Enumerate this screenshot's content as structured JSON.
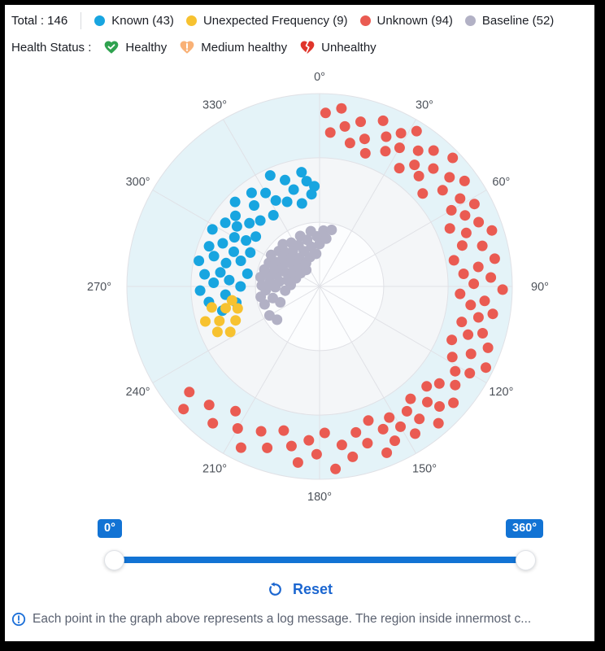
{
  "header": {
    "total_label": "Total : 146",
    "legend": [
      {
        "label": "Known (43)",
        "color": "#18a5e0"
      },
      {
        "label": "Unexpected Frequency (9)",
        "color": "#f7c230"
      },
      {
        "label": "Unknown (94)",
        "color": "#ea5b52"
      },
      {
        "label": "Baseline (52)",
        "color": "#b2b1c5"
      }
    ],
    "health_status_label": "Health Status :",
    "health_legend": [
      {
        "label": "Healthy",
        "icon": "heart-check-icon",
        "color": "#2fa24f"
      },
      {
        "label": "Medium healthy",
        "icon": "heart-exclamation-icon",
        "color": "#f9b176"
      },
      {
        "label": "Unhealthy",
        "icon": "heart-broken-icon",
        "color": "#e0352b"
      }
    ]
  },
  "chart_data": {
    "type": "scatter",
    "coordinate_system": "polar",
    "angle_unit": "degrees_clockwise_from_top",
    "angular_ticks": [
      "0°",
      "30°",
      "60°",
      "90°",
      "120°",
      "150°",
      "180°",
      "210°",
      "240°",
      "270°",
      "300°",
      "330°"
    ],
    "radial_range": [
      0,
      1
    ],
    "layout": {
      "grid_color": "#e0e1e6",
      "rings": [
        {
          "r_fraction": 0.333,
          "fill": "#fcfdfe"
        },
        {
          "r_fraction": 0.667,
          "fill": "#f4f6f8"
        },
        {
          "r_fraction": 1.0,
          "fill": "#e4f3f8"
        }
      ],
      "point_radius": 6.5
    },
    "series": [
      {
        "name": "Known",
        "color": "#18a5e0",
        "count": 43,
        "points": [
          [
            256,
            0.52
          ],
          [
            259,
            0.44
          ],
          [
            262,
            0.58
          ],
          [
            265,
            0.49
          ],
          [
            268,
            0.62
          ],
          [
            270,
            0.41
          ],
          [
            272,
            0.55
          ],
          [
            274,
            0.47
          ],
          [
            276,
            0.6
          ],
          [
            278,
            0.52
          ],
          [
            280,
            0.38
          ],
          [
            282,
            0.64
          ],
          [
            284,
            0.5
          ],
          [
            286,
            0.57
          ],
          [
            288,
            0.43
          ],
          [
            290,
            0.61
          ],
          [
            292,
            0.48
          ],
          [
            294,
            0.55
          ],
          [
            296,
            0.4
          ],
          [
            298,
            0.63
          ],
          [
            300,
            0.51
          ],
          [
            302,
            0.45
          ],
          [
            304,
            0.59
          ],
          [
            306,
            0.53
          ],
          [
            308,
            0.42
          ],
          [
            310,
            0.57
          ],
          [
            312,
            0.49
          ],
          [
            315,
            0.62
          ],
          [
            318,
            0.46
          ],
          [
            321,
            0.54
          ],
          [
            324,
            0.6
          ],
          [
            327,
            0.44
          ],
          [
            330,
            0.56
          ],
          [
            333,
            0.5
          ],
          [
            336,
            0.63
          ],
          [
            339,
            0.47
          ],
          [
            342,
            0.58
          ],
          [
            345,
            0.52
          ],
          [
            348,
            0.44
          ],
          [
            351,
            0.6
          ],
          [
            353,
            0.55
          ],
          [
            355,
            0.48
          ],
          [
            357,
            0.52
          ]
        ]
      },
      {
        "name": "Unexpected Frequency",
        "color": "#f7c230",
        "count": 9,
        "points": [
          [
            243,
            0.52
          ],
          [
            246,
            0.58
          ],
          [
            248,
            0.47
          ],
          [
            251,
            0.55
          ],
          [
            253,
            0.62
          ],
          [
            255,
            0.44
          ],
          [
            257,
            0.5
          ],
          [
            259,
            0.57
          ],
          [
            261,
            0.46
          ]
        ]
      },
      {
        "name": "Unknown",
        "color": "#ea5b52",
        "count": 94,
        "points": [
          [
            2,
            0.9
          ],
          [
            4,
            0.8
          ],
          [
            7,
            0.93
          ],
          [
            9,
            0.84
          ],
          [
            12,
            0.76
          ],
          [
            14,
            0.88
          ],
          [
            17,
            0.8
          ],
          [
            19,
            0.73
          ],
          [
            21,
            0.92
          ],
          [
            24,
            0.85
          ],
          [
            26,
            0.78
          ],
          [
            28,
            0.9
          ],
          [
            30,
            0.83
          ],
          [
            32,
            0.95
          ],
          [
            34,
            0.74
          ],
          [
            36,
            0.87
          ],
          [
            38,
            0.8
          ],
          [
            40,
            0.92
          ],
          [
            42,
            0.77
          ],
          [
            44,
            0.85
          ],
          [
            46,
            0.96
          ],
          [
            48,
            0.72
          ],
          [
            50,
            0.88
          ],
          [
            52,
            0.81
          ],
          [
            54,
            0.93
          ],
          [
            58,
            0.86
          ],
          [
            60,
            0.79
          ],
          [
            62,
            0.91
          ],
          [
            64,
            0.84
          ],
          [
            66,
            0.74
          ],
          [
            68,
            0.89
          ],
          [
            70,
            0.81
          ],
          [
            72,
            0.94
          ],
          [
            74,
            0.77
          ],
          [
            76,
            0.87
          ],
          [
            79,
            0.71
          ],
          [
            81,
            0.92
          ],
          [
            83,
            0.83
          ],
          [
            85,
            0.75
          ],
          [
            87,
            0.89
          ],
          [
            89,
            0.8
          ],
          [
            91,
            0.95
          ],
          [
            93,
            0.73
          ],
          [
            95,
            0.86
          ],
          [
            97,
            0.79
          ],
          [
            99,
            0.91
          ],
          [
            101,
            0.84
          ],
          [
            104,
            0.76
          ],
          [
            106,
            0.88
          ],
          [
            108,
            0.81
          ],
          [
            110,
            0.93
          ],
          [
            112,
            0.74
          ],
          [
            114,
            0.86
          ],
          [
            116,
            0.96
          ],
          [
            118,
            0.78
          ],
          [
            120,
            0.9
          ],
          [
            122,
            0.83
          ],
          [
            126,
            0.87
          ],
          [
            129,
            0.8
          ],
          [
            131,
            0.92
          ],
          [
            133,
            0.76
          ],
          [
            135,
            0.88
          ],
          [
            137,
            0.82
          ],
          [
            139,
            0.94
          ],
          [
            141,
            0.75
          ],
          [
            143,
            0.86
          ],
          [
            145,
            0.79
          ],
          [
            147,
            0.91
          ],
          [
            150,
            0.84
          ],
          [
            152,
            0.77
          ],
          [
            154,
            0.89
          ],
          [
            156,
            0.81
          ],
          [
            158,
            0.93
          ],
          [
            160,
            0.74
          ],
          [
            163,
            0.85
          ],
          [
            166,
            0.78
          ],
          [
            169,
            0.9
          ],
          [
            172,
            0.83
          ],
          [
            175,
            0.95
          ],
          [
            178,
            0.76
          ],
          [
            181,
            0.87
          ],
          [
            184,
            0.8
          ],
          [
            187,
            0.92
          ],
          [
            190,
            0.84
          ],
          [
            194,
            0.77
          ],
          [
            198,
            0.88
          ],
          [
            202,
            0.81
          ],
          [
            206,
            0.93
          ],
          [
            210,
            0.85
          ],
          [
            214,
            0.78
          ],
          [
            218,
            0.9
          ],
          [
            223,
            0.84
          ],
          [
            228,
            0.95
          ],
          [
            231,
            0.87
          ]
        ]
      },
      {
        "name": "Baseline",
        "color": "#b2b1c5",
        "count": 52,
        "points": [
          [
            232,
            0.28
          ],
          [
            240,
            0.3
          ],
          [
            248,
            0.22
          ],
          [
            252,
            0.3
          ],
          [
            256,
            0.25
          ],
          [
            260,
            0.31
          ],
          [
            263,
            0.18
          ],
          [
            266,
            0.28
          ],
          [
            269,
            0.23
          ],
          [
            271,
            0.3
          ],
          [
            273,
            0.15
          ],
          [
            275,
            0.26
          ],
          [
            277,
            0.21
          ],
          [
            279,
            0.31
          ],
          [
            281,
            0.17
          ],
          [
            283,
            0.27
          ],
          [
            285,
            0.23
          ],
          [
            287,
            0.3
          ],
          [
            289,
            0.13
          ],
          [
            291,
            0.25
          ],
          [
            293,
            0.2
          ],
          [
            295,
            0.29
          ],
          [
            297,
            0.16
          ],
          [
            299,
            0.26
          ],
          [
            301,
            0.22
          ],
          [
            303,
            0.3
          ],
          [
            305,
            0.12
          ],
          [
            307,
            0.24
          ],
          [
            309,
            0.19
          ],
          [
            311,
            0.28
          ],
          [
            313,
            0.15
          ],
          [
            315,
            0.25
          ],
          [
            317,
            0.21
          ],
          [
            319,
            0.29
          ],
          [
            321,
            0.11
          ],
          [
            323,
            0.23
          ],
          [
            325,
            0.18
          ],
          [
            327,
            0.27
          ],
          [
            330,
            0.14
          ],
          [
            333,
            0.24
          ],
          [
            336,
            0.2
          ],
          [
            339,
            0.28
          ],
          [
            342,
            0.16
          ],
          [
            345,
            0.25
          ],
          [
            348,
            0.21
          ],
          [
            351,
            0.29
          ],
          [
            354,
            0.17
          ],
          [
            357,
            0.26
          ],
          [
            0,
            0.22
          ],
          [
            4,
            0.29
          ],
          [
            8,
            0.25
          ],
          [
            12,
            0.3
          ]
        ]
      }
    ]
  },
  "slider": {
    "min_label": "0°",
    "max_label": "360°",
    "track_color": "#1273d4"
  },
  "reset": {
    "label": "Reset"
  },
  "footer": {
    "note": "Each point in the graph above represents a log message. The region inside innermost c..."
  }
}
